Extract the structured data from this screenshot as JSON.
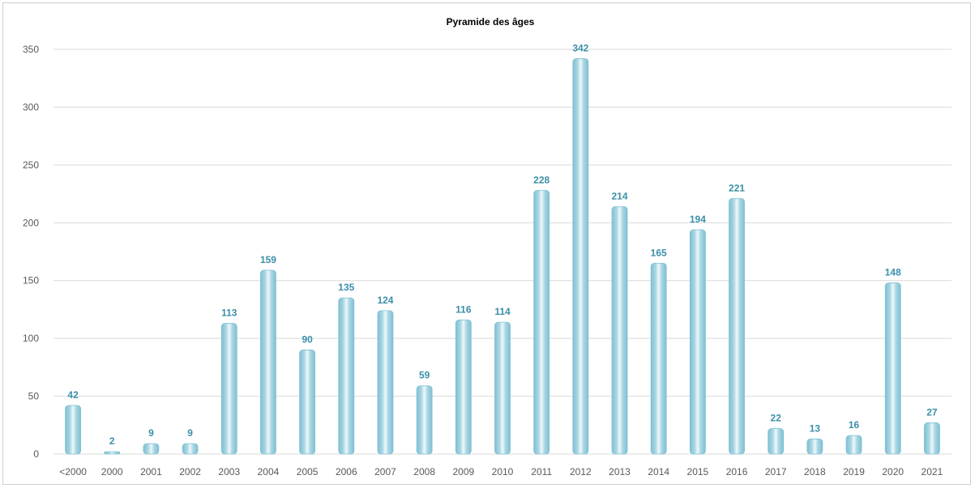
{
  "chart_data": {
    "type": "bar",
    "title": "Pyramide des âges",
    "xlabel": "",
    "ylabel": "",
    "categories": [
      "<2000",
      "2000",
      "2001",
      "2002",
      "2003",
      "2004",
      "2005",
      "2006",
      "2007",
      "2008",
      "2009",
      "2010",
      "2011",
      "2012",
      "2013",
      "2014",
      "2015",
      "2016",
      "2017",
      "2018",
      "2019",
      "2020",
      "2021"
    ],
    "values": [
      42,
      2,
      9,
      9,
      113,
      159,
      90,
      135,
      124,
      59,
      116,
      114,
      228,
      342,
      214,
      165,
      194,
      221,
      22,
      13,
      16,
      148,
      27
    ],
    "ylim": [
      0,
      350
    ],
    "yticks": [
      0,
      50,
      100,
      150,
      200,
      250,
      300,
      350
    ],
    "grid": true,
    "legend": "none",
    "data_labels": true,
    "colors": {
      "bar_edge": "#7fc0d3",
      "bar_center": "#eef8fb",
      "bar_mid": "#a9d6e3",
      "data_label": "#3b8fa8",
      "grid": "#d9d9d9",
      "axis_text": "#595959"
    }
  }
}
